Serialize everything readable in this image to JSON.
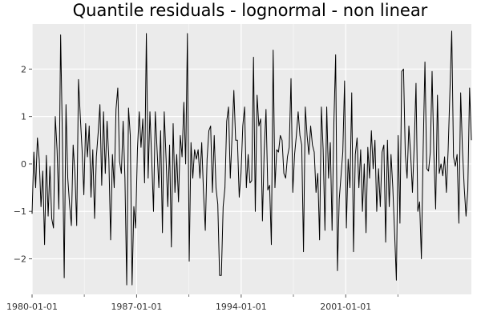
{
  "chart_data": {
    "type": "line",
    "title": "Quantile residuals - lognormal - non linear",
    "xlabel": "",
    "ylabel": "",
    "grid": true,
    "legend": "none",
    "colors": {
      "panel": "#ebebeb",
      "grid": "#ffffff",
      "line": "#000000"
    },
    "x_start": "1980-01-01",
    "x_end": "2009-06-01",
    "x_ticks": [
      "1980-01-01",
      "1987-01-01",
      "1994-01-01",
      "2001-01-01"
    ],
    "x_tick_labels": [
      "1980-01-01",
      "1987-01-01",
      "1994-01-01",
      "2001-01-01"
    ],
    "x_minor_ticks": [
      "1983-07-01",
      "1990-07-01",
      "1997-07-01",
      "2004-07-01"
    ],
    "y_ticks": [
      -2,
      -1,
      0,
      1,
      2
    ],
    "y_tick_labels": [
      "−2",
      "−1",
      "0",
      "1",
      "2"
    ],
    "ylim": [
      -2.75,
      2.95
    ],
    "series": [
      {
        "values": [
          -1.05,
          0.25,
          -0.5,
          0.55,
          0.1,
          -0.9,
          -0.15,
          -1.7,
          0.18,
          -1.1,
          -0.05,
          -1.15,
          -1.35,
          1.0,
          0.3,
          -0.95,
          2.72,
          0.5,
          -2.4,
          1.25,
          -0.3,
          -0.85,
          -1.3,
          0.4,
          -0.2,
          -1.3,
          1.78,
          1.0,
          0.3,
          -0.65,
          0.85,
          0.15,
          0.8,
          -0.7,
          0.3,
          -1.15,
          0.15,
          0.65,
          1.25,
          -0.45,
          1.1,
          -0.2,
          0.9,
          0.1,
          -1.6,
          0.2,
          -0.5,
          1.15,
          1.6,
          0.05,
          -0.2,
          0.9,
          -0.3,
          -2.55,
          1.18,
          0.6,
          -2.55,
          -0.9,
          -1.35,
          0.3,
          1.1,
          0.35,
          0.95,
          -0.4,
          2.75,
          -0.3,
          1.1,
          0.1,
          -1.0,
          1.1,
          0.3,
          -0.5,
          0.7,
          -1.45,
          1.1,
          0.15,
          -0.9,
          0.4,
          -1.75,
          0.85,
          -0.6,
          0.2,
          -0.8,
          0.6,
          0.15,
          1.3,
          0.0,
          2.75,
          -2.05,
          0.45,
          -0.3,
          0.3,
          0.1,
          0.3,
          -0.3,
          0.45,
          -0.6,
          -1.4,
          0.1,
          0.7,
          0.8,
          -0.6,
          0.6,
          -0.5,
          -0.85,
          -2.35,
          -2.35,
          -0.9,
          -0.5,
          0.9,
          1.2,
          -0.3,
          0.6,
          1.55,
          0.5,
          0.5,
          -0.7,
          -0.2,
          0.8,
          1.2,
          -0.5,
          0.2,
          -0.4,
          -0.35,
          2.25,
          -1.0,
          1.45,
          0.8,
          0.95,
          -1.2,
          0.3,
          1.15,
          -0.55,
          -0.45,
          -1.7,
          2.4,
          -0.5,
          0.3,
          0.25,
          0.6,
          0.5,
          -0.2,
          -0.3,
          0.15,
          0.35,
          1.8,
          -0.6,
          0.2,
          0.6,
          1.1,
          0.6,
          0.4,
          -1.85,
          1.2,
          0.6,
          0.2,
          0.8,
          0.4,
          0.25,
          -0.6,
          -0.2,
          -1.6,
          1.2,
          0.3,
          -1.4,
          1.2,
          -0.3,
          0.45,
          -1.4,
          0.85,
          2.3,
          -2.25,
          -0.75,
          -0.25,
          0.25,
          1.75,
          -1.35,
          0.1,
          -0.5,
          1.5,
          -1.85,
          0.2,
          0.55,
          -0.5,
          0.3,
          -1.0,
          0.0,
          -1.45,
          0.35,
          -0.3,
          0.7,
          -0.1,
          0.5,
          -1.0,
          -0.1,
          -0.9,
          0.25,
          0.4,
          -1.65,
          0.5,
          -0.9,
          0.2,
          -0.5,
          -1.45,
          -2.45,
          0.6,
          -1.25,
          1.95,
          2.0,
          0.2,
          -0.3,
          0.8,
          0.2,
          -0.6,
          0.4,
          1.7,
          -1.0,
          -0.8,
          -2.0,
          0.3,
          2.15,
          -0.1,
          -0.15,
          0.25,
          1.95,
          0.2,
          -0.95,
          1.45,
          -0.2,
          0.0,
          -0.25,
          0.15,
          -0.6,
          0.3,
          1.55,
          2.8,
          0.15,
          -0.05,
          0.2,
          -1.25,
          1.5,
          0.3,
          -0.5,
          -1.1,
          -0.55,
          1.6,
          0.5
        ]
      }
    ]
  }
}
